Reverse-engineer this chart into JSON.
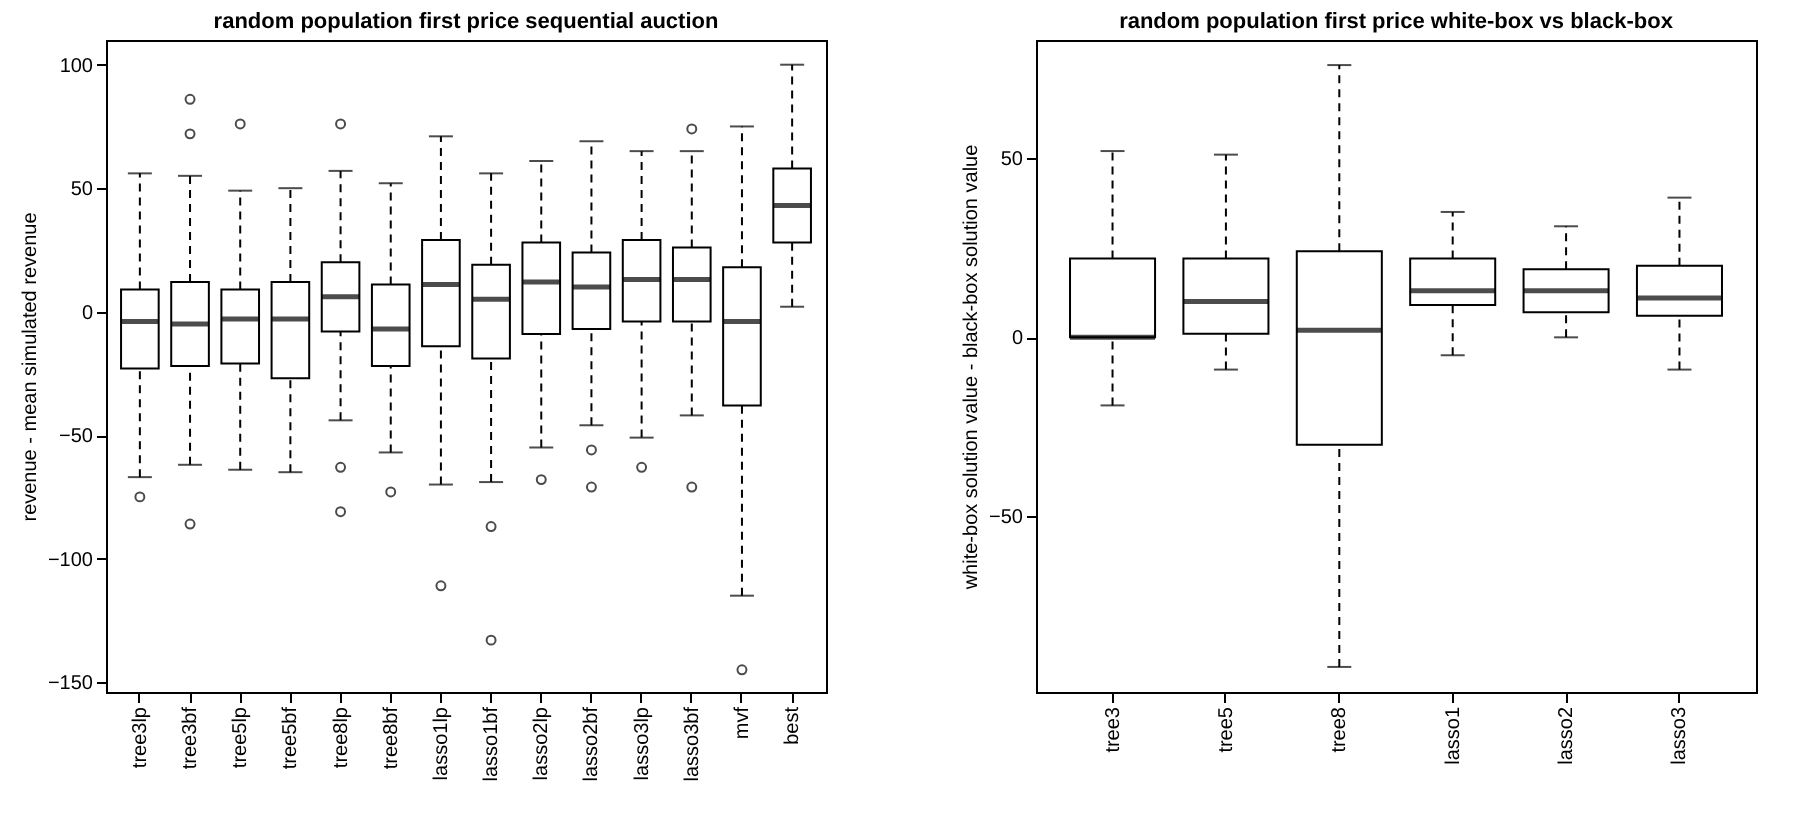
{
  "chart_data": [
    {
      "type": "box",
      "title": "random population first price sequential auction",
      "ylabel": "revenue - mean simulated revenue",
      "categories": [
        "tree3lp",
        "tree3bf",
        "tree5lp",
        "tree5bf",
        "tree8lp",
        "tree8bf",
        "lasso1lp",
        "lasso1bf",
        "lasso2lp",
        "lasso2bf",
        "lasso3lp",
        "lasso3bf",
        "mvf",
        "best"
      ],
      "boxes": [
        {
          "low": -67,
          "q1": -23,
          "median": -4,
          "q3": 9,
          "high": 56,
          "outliers": [
            -75
          ]
        },
        {
          "low": -62,
          "q1": -22,
          "median": -5,
          "q3": 12,
          "high": 55,
          "outliers": [
            86,
            72,
            -86
          ]
        },
        {
          "low": -64,
          "q1": -21,
          "median": -3,
          "q3": 9,
          "high": 49,
          "outliers": [
            76
          ]
        },
        {
          "low": -65,
          "q1": -27,
          "median": -3,
          "q3": 12,
          "high": 50
        },
        {
          "low": -44,
          "q1": -8,
          "median": 6,
          "q3": 20,
          "high": 57,
          "outliers": [
            76,
            -63,
            -81
          ]
        },
        {
          "low": -57,
          "q1": -22,
          "median": -7,
          "q3": 11,
          "high": 52,
          "outliers": [
            -73
          ]
        },
        {
          "low": -70,
          "q1": -14,
          "median": 11,
          "q3": 29,
          "high": 71,
          "outliers": [
            -111
          ]
        },
        {
          "low": -69,
          "q1": -19,
          "median": 5,
          "q3": 19,
          "high": 56,
          "outliers": [
            -87,
            -133
          ]
        },
        {
          "low": -55,
          "q1": -9,
          "median": 12,
          "q3": 28,
          "high": 61,
          "outliers": [
            -68
          ]
        },
        {
          "low": -46,
          "q1": -7,
          "median": 10,
          "q3": 24,
          "high": 69,
          "outliers": [
            -56,
            -71
          ]
        },
        {
          "low": -51,
          "q1": -4,
          "median": 13,
          "q3": 29,
          "high": 65,
          "outliers": [
            -63
          ]
        },
        {
          "low": -42,
          "q1": -4,
          "median": 13,
          "q3": 26,
          "high": 65,
          "outliers": [
            74,
            -71
          ]
        },
        {
          "low": -115,
          "q1": -38,
          "median": -4,
          "q3": 18,
          "high": 75,
          "outliers": [
            -145
          ]
        },
        {
          "low": 2,
          "q1": 28,
          "median": 43,
          "q3": 58,
          "high": 100
        }
      ],
      "ylim": [
        -154,
        110
      ],
      "yticks": [
        -150,
        -100,
        -50,
        0,
        50,
        100
      ]
    },
    {
      "type": "box",
      "title": "random population first price white-box vs black-box",
      "ylabel": "white-box solution value - black-box solution value",
      "categories": [
        "tree3",
        "tree5",
        "tree8",
        "lasso1",
        "lasso2",
        "lasso3"
      ],
      "boxes": [
        {
          "low": -19,
          "q1": 0,
          "median": 0,
          "q3": 22,
          "high": 52
        },
        {
          "low": -9,
          "q1": 1,
          "median": 10,
          "q3": 22,
          "high": 51
        },
        {
          "low": -92,
          "q1": -30,
          "median": 2,
          "q3": 24,
          "high": 76
        },
        {
          "low": -5,
          "q1": 9,
          "median": 13,
          "q3": 22,
          "high": 35
        },
        {
          "low": 0,
          "q1": 7,
          "median": 13,
          "q3": 19,
          "high": 31
        },
        {
          "low": -9,
          "q1": 6,
          "median": 11,
          "q3": 20,
          "high": 39
        }
      ],
      "ylim": [
        -99,
        83
      ],
      "yticks": [
        -50,
        0,
        50
      ]
    }
  ]
}
